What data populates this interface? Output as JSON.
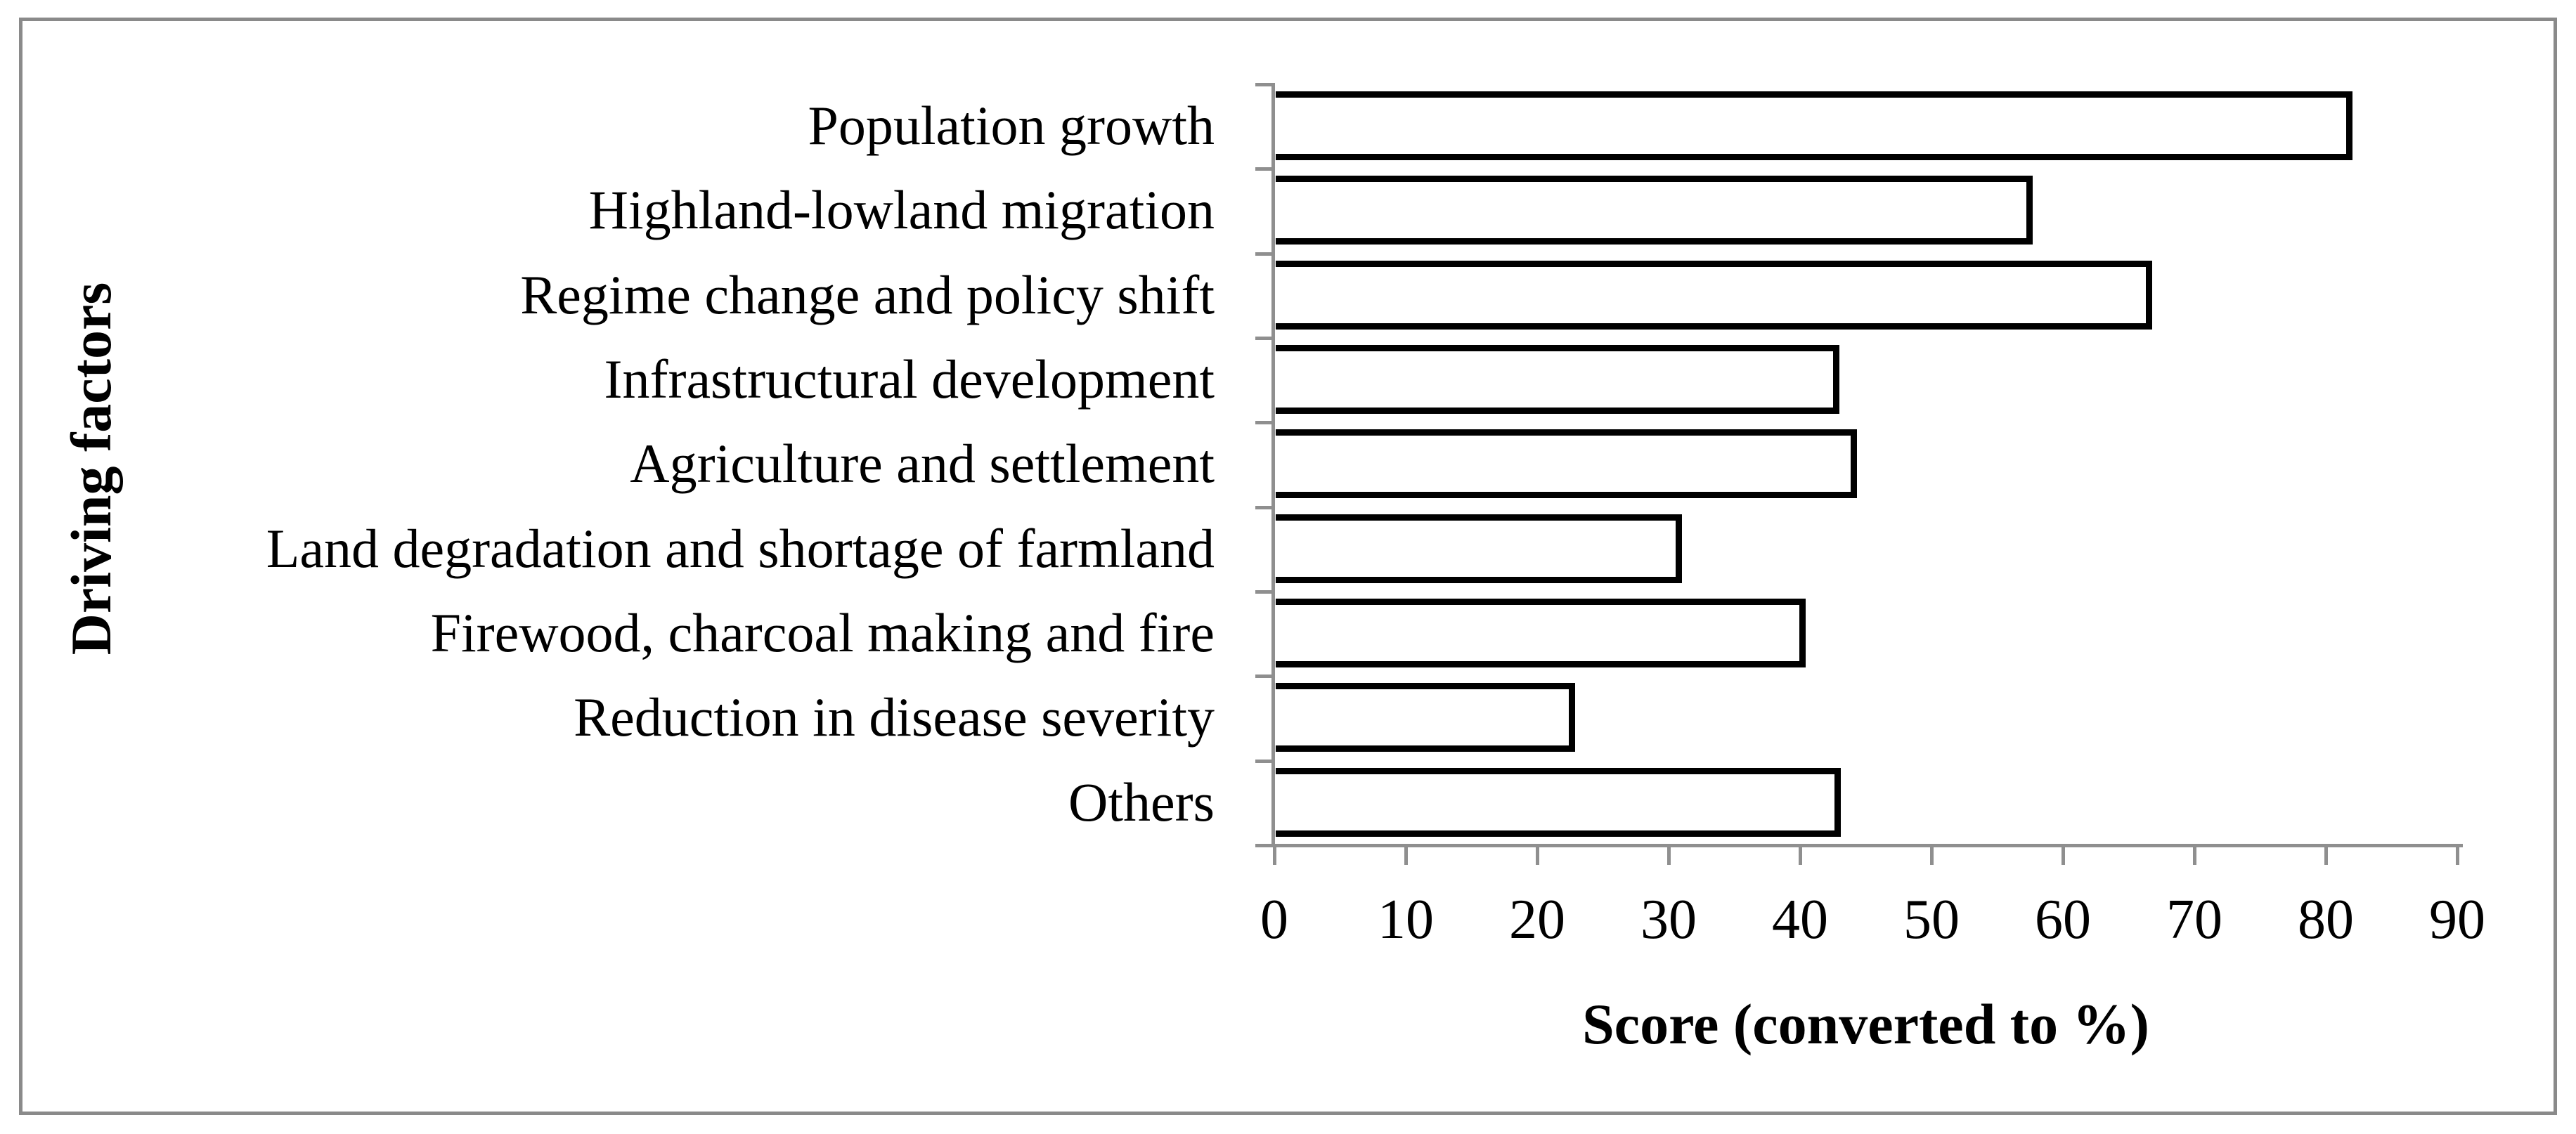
{
  "figure": {
    "background": "#ffffff",
    "border_color": "#8a8a8a"
  },
  "chart_data": {
    "type": "bar",
    "orientation": "horizontal",
    "title": "",
    "categories": [
      "Population growth",
      "Highland-lowland migration",
      "Regime change and policy shift",
      "Infrastructural development",
      "Agriculture and settlement",
      "Land degradation and shortage of farmland",
      "Firewood, charcoal making and fire",
      "Reduction in disease severity",
      "Others"
    ],
    "values": [
      81.9,
      57.6,
      66.7,
      42.9,
      44.2,
      30.9,
      40.3,
      22.8,
      43.0
    ],
    "xlabel": "Score (converted to %)",
    "ylabel": "Driving factors",
    "xlim": [
      0,
      90
    ],
    "xticks": [
      0,
      10,
      20,
      30,
      40,
      50,
      60,
      70,
      80,
      90
    ],
    "grid": false,
    "legend": false,
    "bar_fill": "#ffffff",
    "bar_border_color": "#000000",
    "axis_color": "#8f8f8f",
    "text_color": "#000000"
  }
}
